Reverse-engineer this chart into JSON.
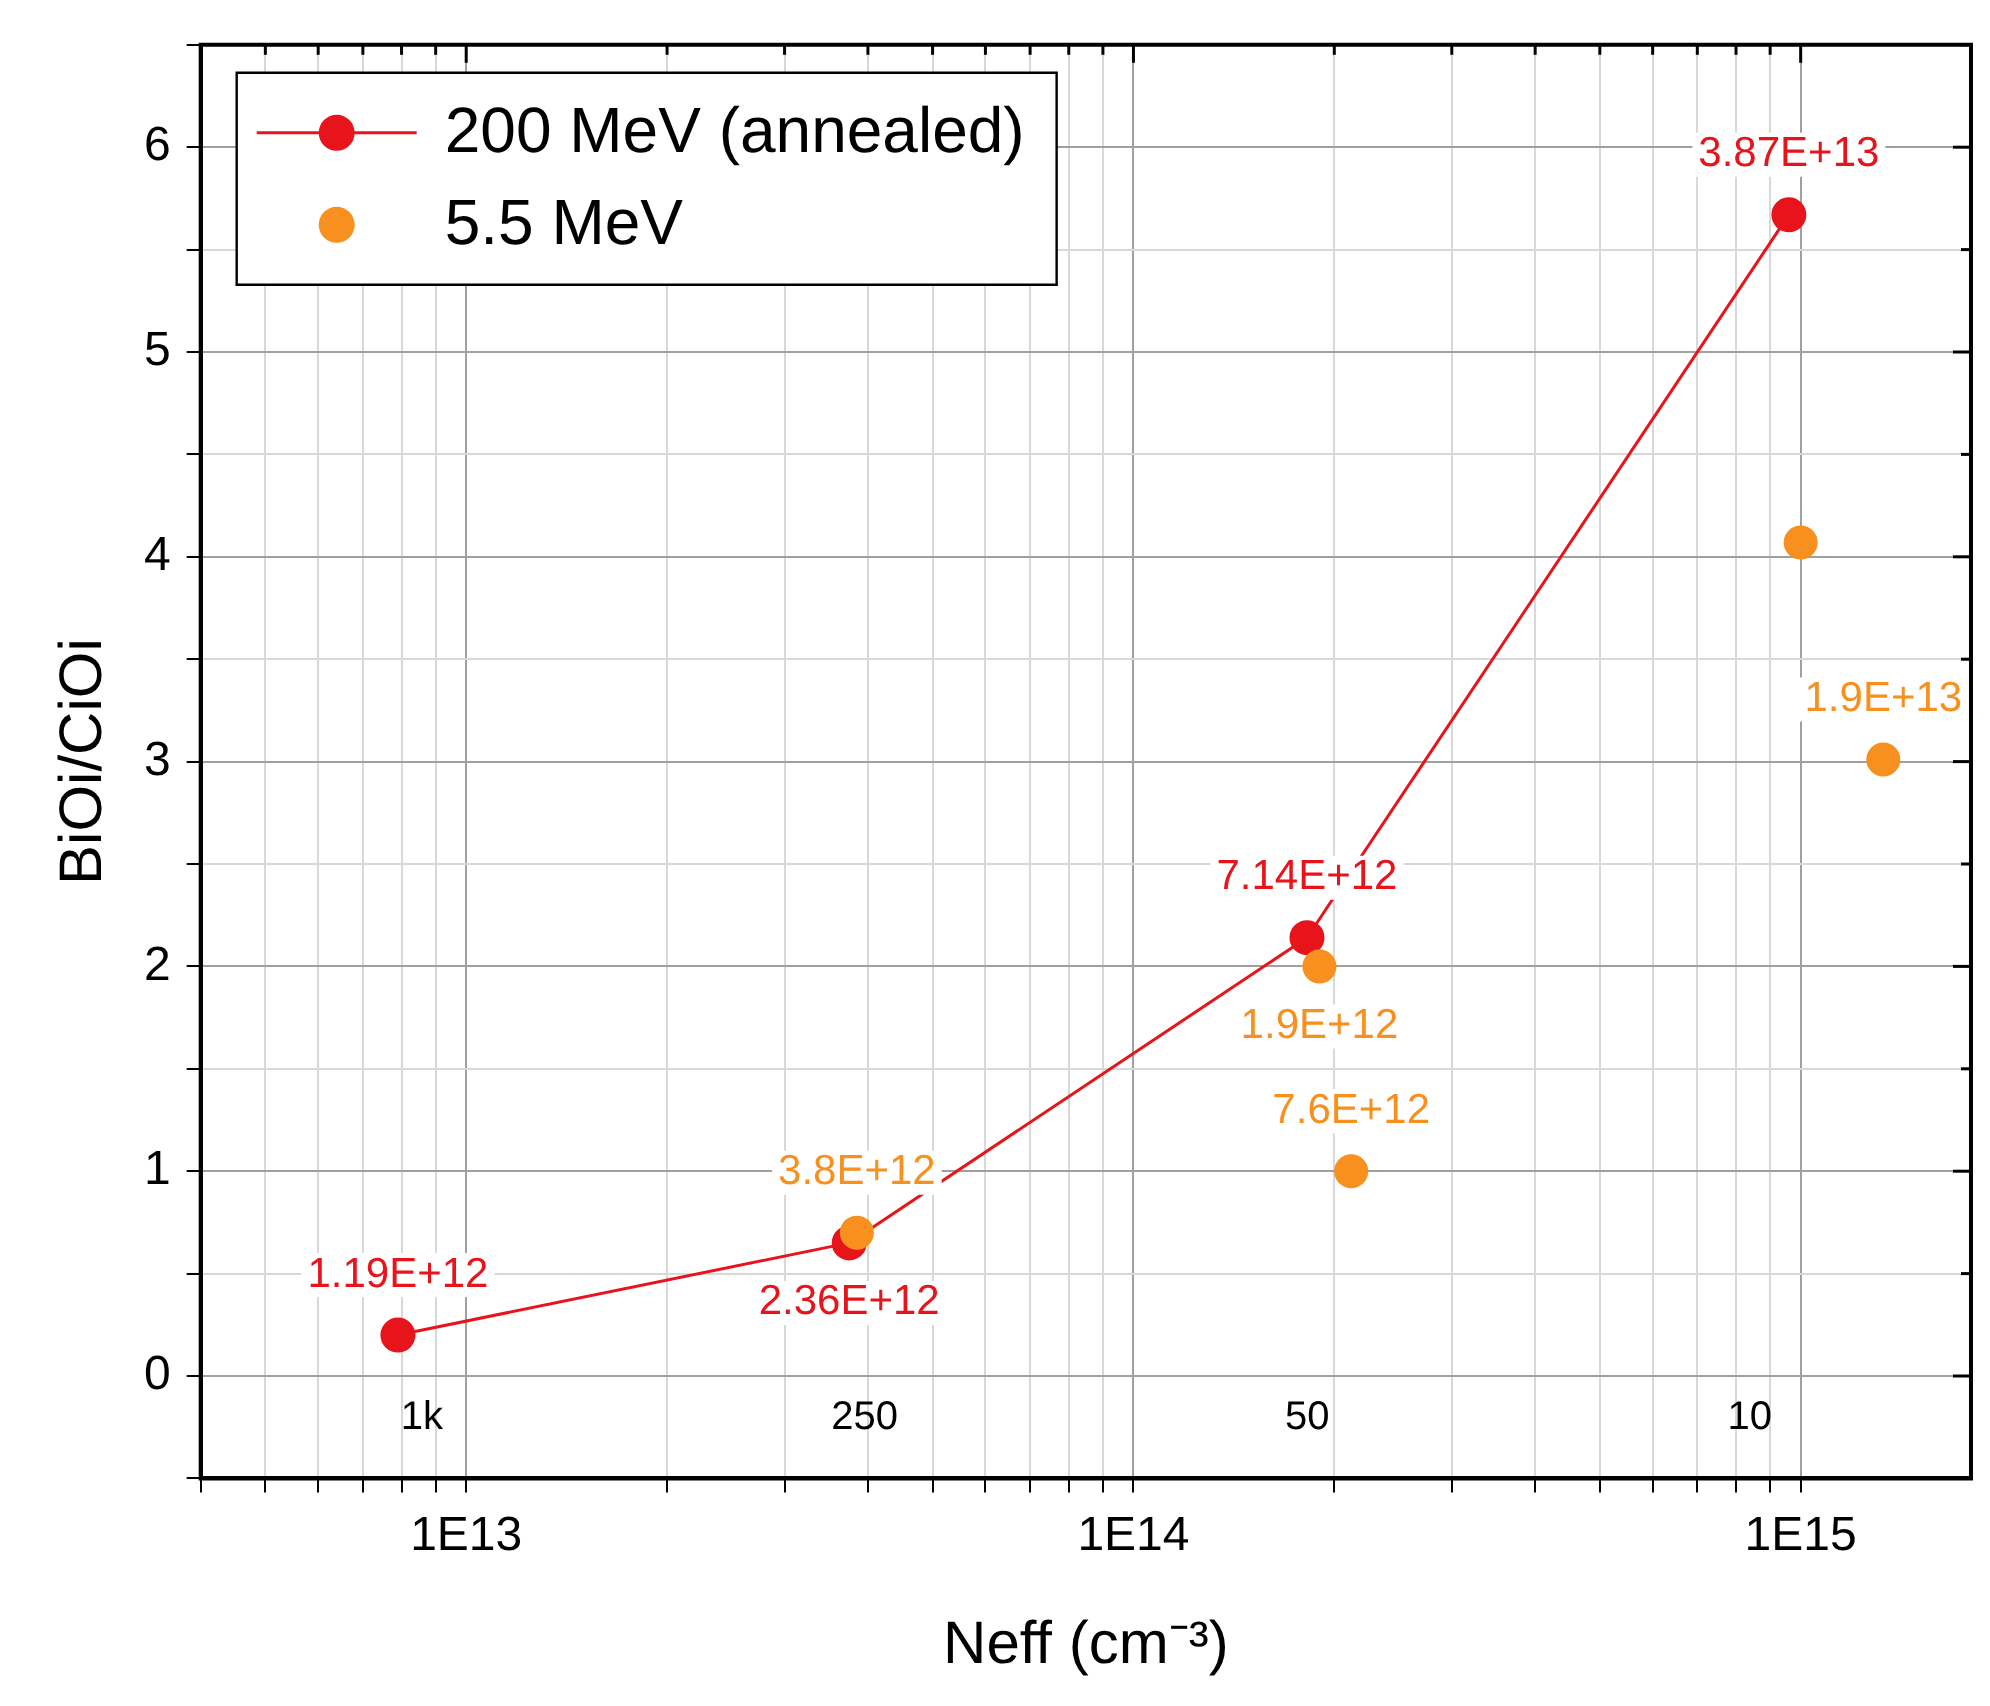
{
  "chart_data": {
    "type": "scatter",
    "xlabel": "Neff (cm⁻³)",
    "ylabel": "BiOi/CiOi",
    "log": "x",
    "xlim": [
      4000000000000.0,
      1800000000000000.0
    ],
    "xticks": [
      {
        "value": 4000000000000.0,
        "label": null
      },
      {
        "value": 5000000000000.0,
        "label": null
      },
      {
        "value": 6000000000000.0,
        "label": null
      },
      {
        "value": 7000000000000.0,
        "label": null
      },
      {
        "value": 8000000000000.0,
        "label": null
      },
      {
        "value": 9000000000000.0,
        "label": null
      },
      {
        "value": 10000000000000.0,
        "label": "1E13"
      },
      {
        "value": 20000000000000.0,
        "label": null
      },
      {
        "value": 30000000000000.0,
        "label": null
      },
      {
        "value": 40000000000000.0,
        "label": null
      },
      {
        "value": 50000000000000.0,
        "label": null
      },
      {
        "value": 60000000000000.0,
        "label": null
      },
      {
        "value": 70000000000000.0,
        "label": null
      },
      {
        "value": 80000000000000.0,
        "label": null
      },
      {
        "value": 90000000000000.0,
        "label": null
      },
      {
        "value": 100000000000000.0,
        "label": "1E14"
      },
      {
        "value": 200000000000000.0,
        "label": null
      },
      {
        "value": 300000000000000.0,
        "label": null
      },
      {
        "value": 400000000000000.0,
        "label": null
      },
      {
        "value": 500000000000000.0,
        "label": null
      },
      {
        "value": 600000000000000.0,
        "label": null
      },
      {
        "value": 700000000000000.0,
        "label": null
      },
      {
        "value": 800000000000000.0,
        "label": null
      },
      {
        "value": 900000000000000.0,
        "label": null
      },
      {
        "value": 1000000000000000.0,
        "label": "1E15"
      }
    ],
    "ylim": [
      -0.5,
      6.5
    ],
    "yticks": [
      {
        "value": -0.5,
        "label": null
      },
      0,
      {
        "value": 0.5,
        "label": null
      },
      1,
      {
        "value": 1.5,
        "label": null
      },
      2,
      {
        "value": 2.5,
        "label": null
      },
      3,
      {
        "value": 3.5,
        "label": null
      },
      4,
      {
        "value": 4.5,
        "label": null
      },
      5,
      {
        "value": 5.5,
        "label": null
      },
      6,
      {
        "value": 6.5,
        "label": null
      }
    ],
    "grid": true,
    "legend": "top left",
    "marker": "circle",
    "series": [
      {
        "name": "200 MeV (annealed)",
        "type": "line",
        "line_style": "solid",
        "color": "#e8141c",
        "x": [
          7900000000000.0,
          37500000000000.0,
          182000000000000.0,
          960000000000000.0
        ],
        "values": [
          0.2,
          0.65,
          2.14,
          5.67
        ]
      },
      {
        "name": "5.5 MeV",
        "type": "scatter",
        "color": "#f7901e",
        "x": [
          38500000000000.0,
          190000000000000.0,
          212000000000000.0,
          1000000000000000.0,
          1330000000000000.0
        ],
        "values": [
          0.7,
          2.0,
          1.0,
          4.07,
          3.01
        ]
      }
    ],
    "annotations": [
      {
        "text": "3.8E+12",
        "x": 38500000000000.0,
        "y": 0.7
      },
      {
        "text": "1.19E+12",
        "x": 7900000000000.0,
        "y": 0.2
      },
      {
        "text": "2.36E+12",
        "x": 37500000000000.0,
        "y": 0.65
      },
      {
        "text": "7.14E+12",
        "x": 182000000000000.0,
        "y": 2.14
      },
      {
        "text": "3.87E+13",
        "x": 960000000000000.0,
        "y": 5.67
      },
      {
        "text": "1.9E+12",
        "x": 190000000000000.0,
        "y": 2.0
      },
      {
        "text": "7.6E+12",
        "x": 212000000000000.0,
        "y": 1.0
      },
      {
        "text": "1.9E+13",
        "x": 1330000000000000.0,
        "y": 3.01
      },
      "1k",
      "250",
      "50",
      "10"
    ]
  }
}
